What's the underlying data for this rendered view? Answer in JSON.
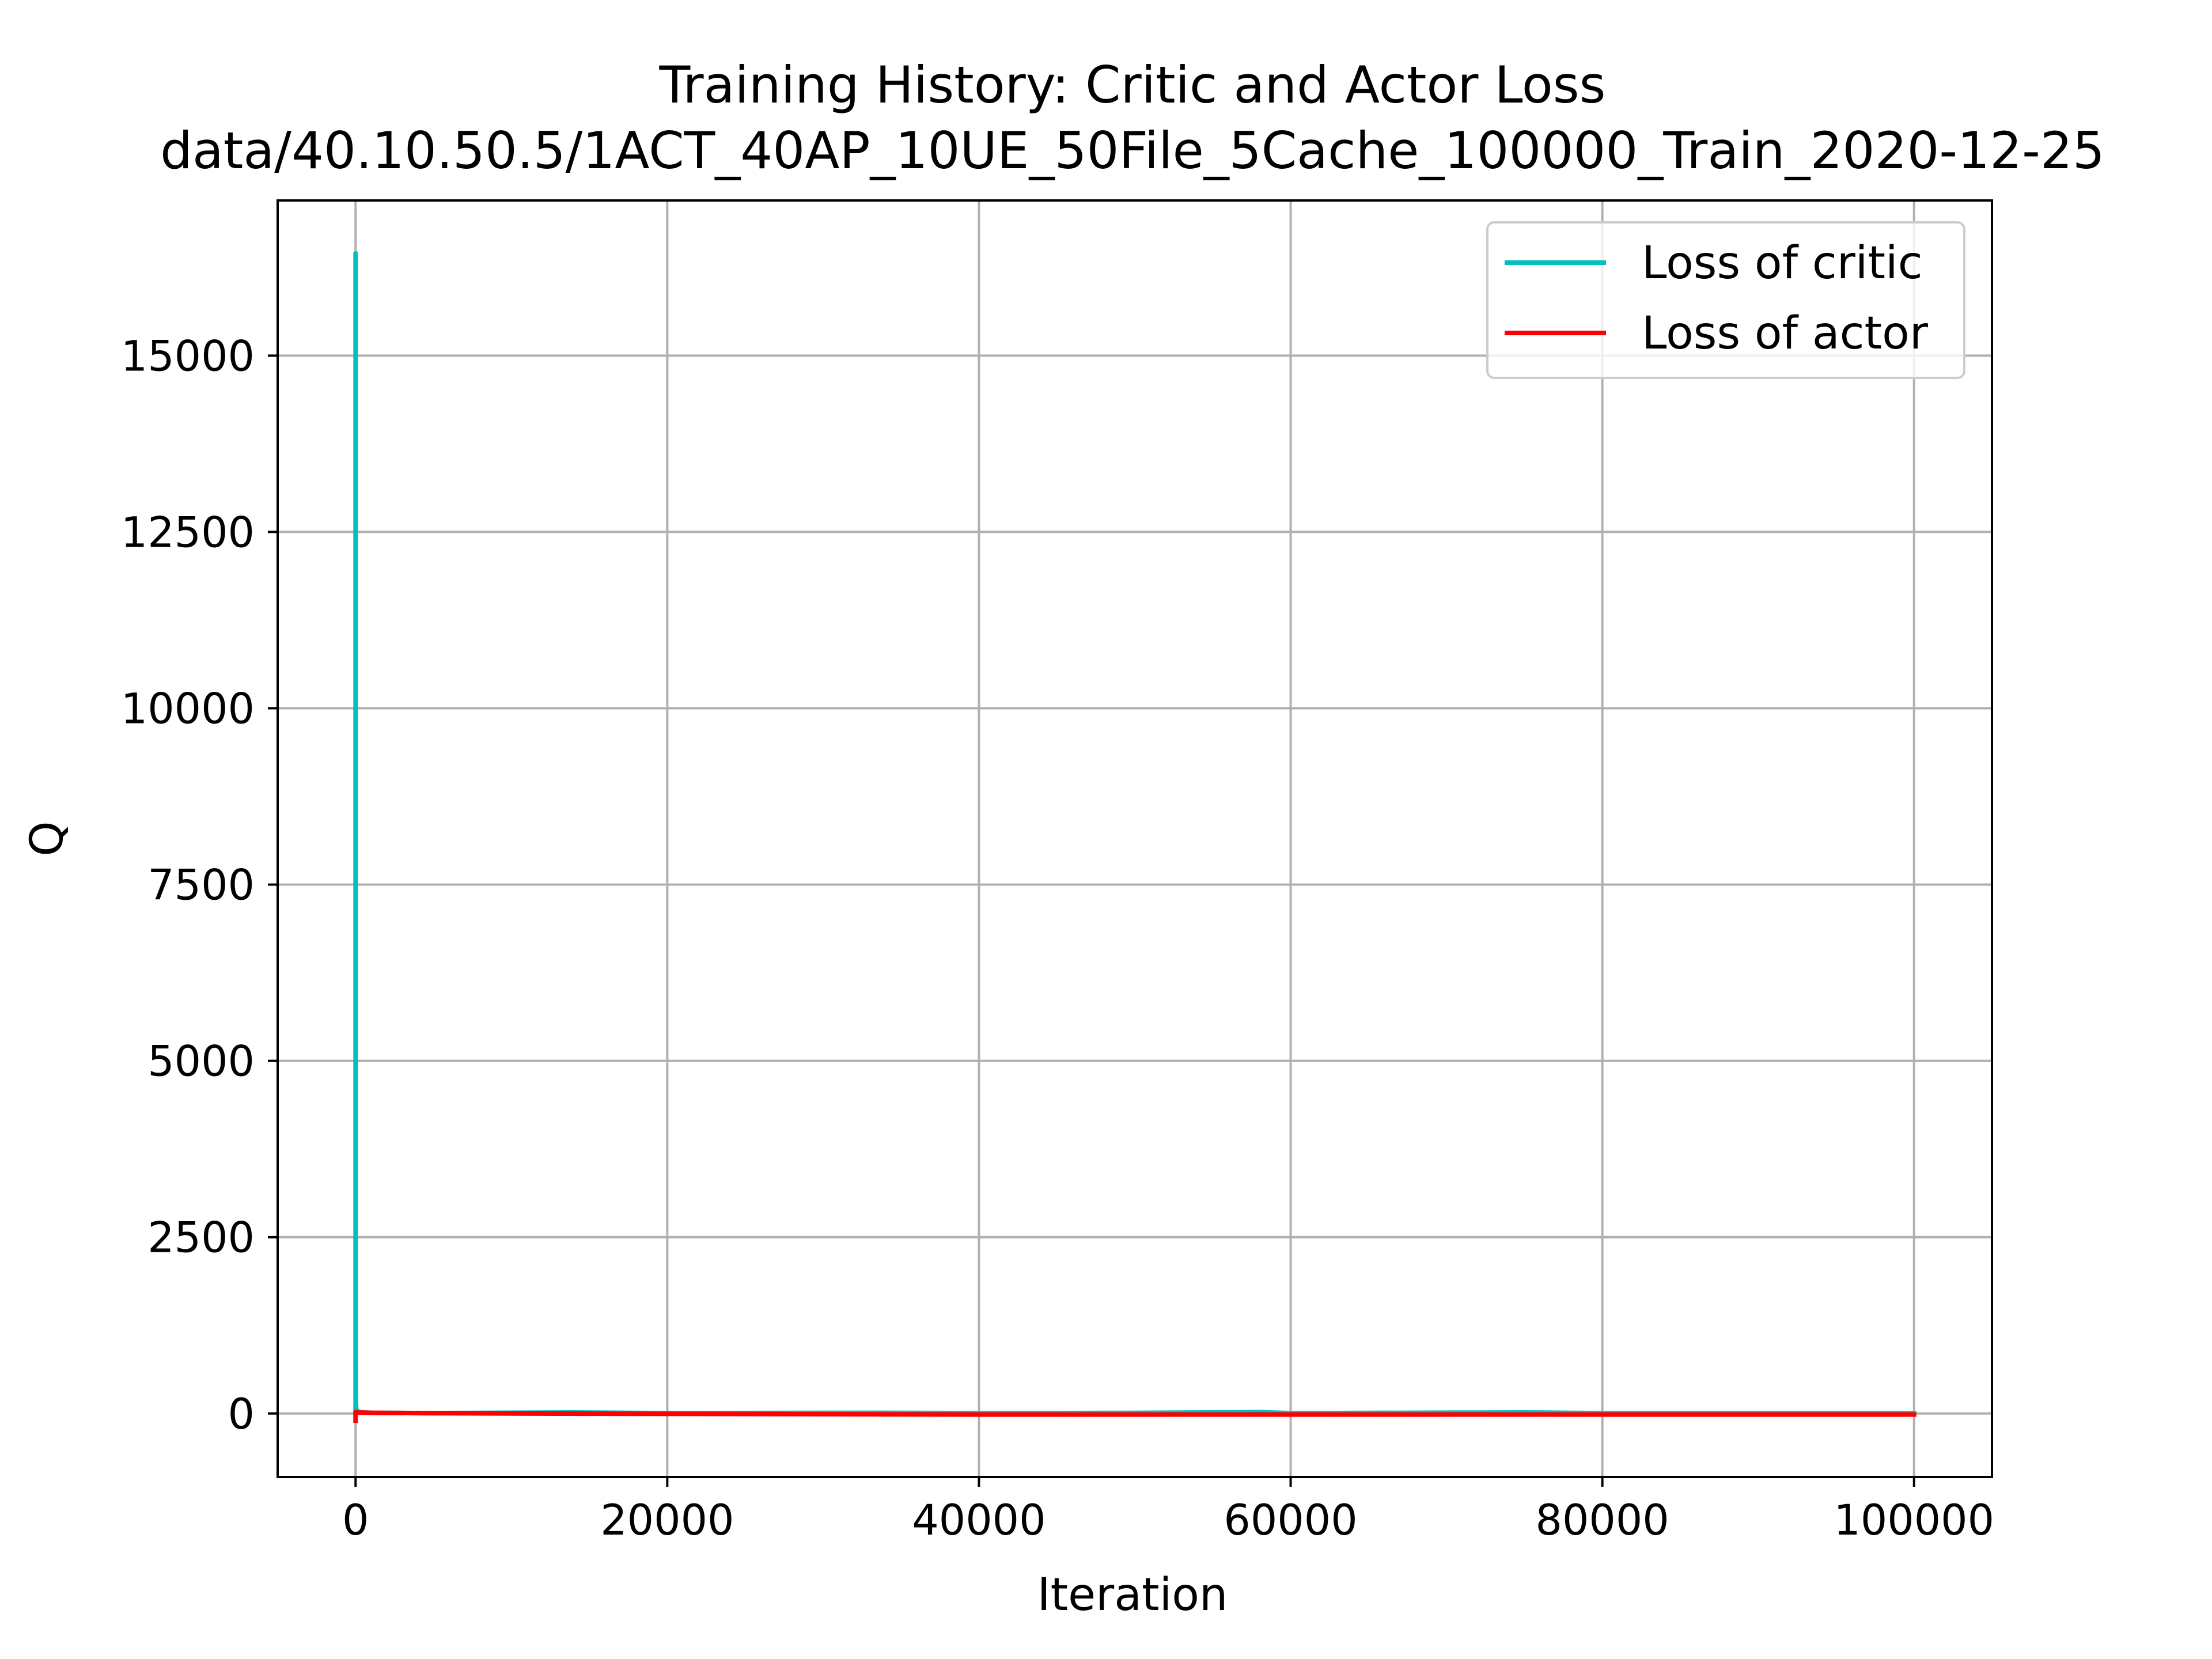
{
  "chart_data": {
    "type": "line",
    "title": "Training History: Critic and Actor Loss",
    "subtitle": "data/40.10.50.5/1ACT_40AP_10UE_50File_5Cache_100000_Train_2020-12-25",
    "xlabel": "Iteration",
    "ylabel": "Q",
    "xlim": [
      -5000,
      105000
    ],
    "ylim": [
      -900,
      17200
    ],
    "x_ticks": [
      0,
      20000,
      40000,
      60000,
      80000,
      100000
    ],
    "x_tick_labels": [
      "0",
      "20000",
      "40000",
      "60000",
      "80000",
      "100000"
    ],
    "y_ticks": [
      0,
      2500,
      5000,
      7500,
      10000,
      12500,
      15000
    ],
    "y_tick_labels": [
      "0",
      "2500",
      "5000",
      "7500",
      "10000",
      "12500",
      "15000"
    ],
    "grid": true,
    "legend_position": "top-right",
    "series": [
      {
        "name": "Loss of critic",
        "color": "#00bfbf",
        "x": [
          0,
          0,
          0,
          10,
          50,
          200,
          1000,
          5000,
          14000,
          20000,
          33000,
          40000,
          50000,
          58000,
          60000,
          75000,
          80000,
          90000,
          100000
        ],
        "y": [
          0,
          16450,
          1200,
          200,
          50,
          20,
          10,
          5,
          15,
          5,
          10,
          5,
          8,
          20,
          5,
          15,
          5,
          5,
          5
        ]
      },
      {
        "name": "Loss of actor",
        "color": "#ff0000",
        "x": [
          0,
          0,
          100,
          1000,
          5000,
          10000,
          20000,
          30000,
          40000,
          50000,
          60000,
          70000,
          80000,
          90000,
          100000
        ],
        "y": [
          -100,
          20,
          15,
          10,
          5,
          0,
          -5,
          -10,
          -15,
          -15,
          -15,
          -15,
          -15,
          -15,
          -15
        ]
      }
    ]
  }
}
